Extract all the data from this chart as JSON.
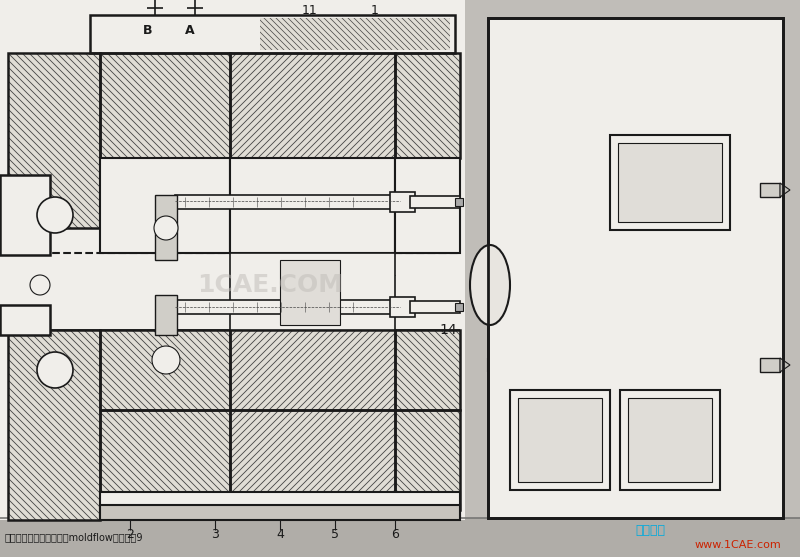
{
  "bg_color": "#e8e6e0",
  "outer_bg": "#c0bdb8",
  "black": "#1a1a1a",
  "dark_gray": "#444444",
  "mid_gray": "#888888",
  "light_gray": "#cccccc",
  "hatch_fill": "#e0ddd5",
  "white_area": "#f0eeea",
  "watermark": "1CAE.COM",
  "watermark_color": "#bbbbbb",
  "bottom_left_cn": "仿真在线",
  "bottom_right": "www.1CAE.com",
  "bottom_caption": "叠层注射模具设计与应用moldflow结果图用9",
  "fig_width": 8.0,
  "fig_height": 5.57,
  "dpi": 100
}
